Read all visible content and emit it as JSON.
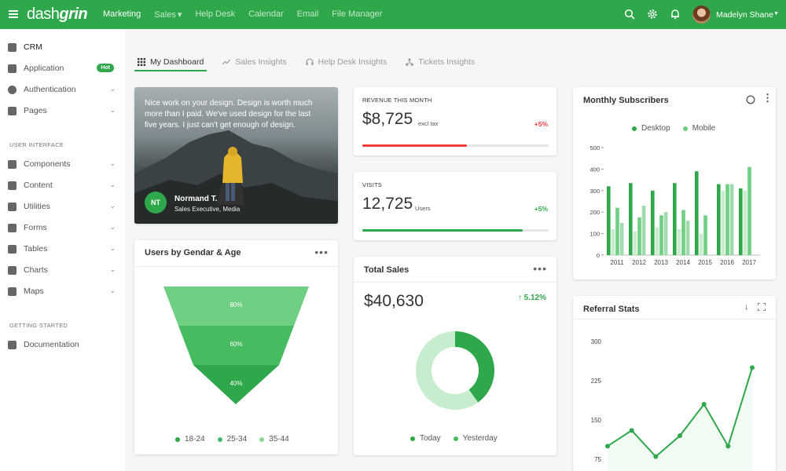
{
  "app": {
    "logo_main": "dash",
    "logo_accent": "grin"
  },
  "topnav": [
    "Marketing",
    "Sales",
    "Help Desk",
    "Calendar",
    "Email",
    "File Manager"
  ],
  "topnav_active": "Marketing",
  "user": {
    "name": "Madelyn Shane"
  },
  "sidebar": {
    "items": [
      {
        "label": "CRM",
        "icon": "crm-icon"
      },
      {
        "label": "Application",
        "icon": "application-icon",
        "badge": "Hot"
      },
      {
        "label": "Authentication",
        "icon": "authentication-icon"
      },
      {
        "label": "Pages",
        "icon": "pages-icon"
      }
    ],
    "section_ui": "USER INTERFACE",
    "ui_items": [
      {
        "label": "Components",
        "icon": "components-icon"
      },
      {
        "label": "Content",
        "icon": "content-icon"
      },
      {
        "label": "Utilities",
        "icon": "utilities-icon"
      },
      {
        "label": "Forms",
        "icon": "forms-icon"
      },
      {
        "label": "Tables",
        "icon": "tables-icon"
      },
      {
        "label": "Charts",
        "icon": "charts-icon"
      },
      {
        "label": "Maps",
        "icon": "maps-icon"
      }
    ],
    "section_start": "GETTING STARTED",
    "start_items": [
      {
        "label": "Documentation",
        "icon": "documentation-icon"
      }
    ]
  },
  "tabs": [
    {
      "label": "My Dashboard",
      "icon": "grid-icon"
    },
    {
      "label": "Sales Insights",
      "icon": "trend-icon"
    },
    {
      "label": "Help Desk Insights",
      "icon": "headphones-icon"
    },
    {
      "label": "Tickets Insights",
      "icon": "network-icon"
    }
  ],
  "testimonial": {
    "quote": "Nice work on your design. Design is worth much more than I paid. We've used design for the last five years. I just can't get enough of design.",
    "initials": "NT",
    "name": "Normand T.",
    "role": "Sales Executive, Media"
  },
  "revenue": {
    "label": "REVENUE THIS MONTH",
    "value": "$8,725",
    "unit": "excl tax",
    "change": "+5%",
    "progress": 0.56
  },
  "visits": {
    "label": "VISITS",
    "value": "12,725",
    "unit": "Users",
    "change": "+5%",
    "progress": 0.86
  },
  "total_sales": {
    "title": "Total Sales",
    "value": "$40,630",
    "change": "5.12%",
    "legend": [
      "Today",
      "Yesterday"
    ]
  },
  "funnel": {
    "title": "Users by Gendar & Age",
    "levels": [
      "80%",
      "60%",
      "40%"
    ],
    "legend": [
      "18-24",
      "25-34",
      "35-44"
    ]
  },
  "subscribers": {
    "title": "Monthly Subscribers",
    "legend": [
      "Desktop",
      "Mobile"
    ]
  },
  "referral": {
    "title": "Referral Stats"
  },
  "colors": {
    "primary": "#2ea84a",
    "light": "#86d595",
    "lighter": "#c7ecce",
    "danger": "#ee3e3e"
  },
  "chart_data": [
    {
      "type": "bar",
      "title": "Monthly Subscribers",
      "categories": [
        "2011",
        "2012",
        "2013",
        "2014",
        "2015",
        "2016",
        "2017"
      ],
      "ylim": [
        0,
        500
      ],
      "yticks": [
        "0",
        "100",
        "200",
        "300",
        "400",
        "500"
      ],
      "series": [
        {
          "name": "Desktop",
          "values": [
            320,
            335,
            300,
            335,
            390,
            330,
            310
          ]
        },
        {
          "name": "Mobile",
          "values": [
            120,
            110,
            130,
            120,
            100,
            300,
            300
          ]
        },
        {
          "name": "Desktop",
          "values": [
            220,
            175,
            185,
            210,
            185,
            330,
            410
          ]
        },
        {
          "name": "Mobile",
          "values": [
            150,
            230,
            200,
            160,
            0,
            330,
            0
          ]
        }
      ],
      "legend": "top"
    },
    {
      "type": "line",
      "title": "Referral Stats",
      "yticks": [
        "300",
        "225",
        "150",
        "75"
      ],
      "ylim": [
        75,
        300
      ],
      "values": [
        100,
        130,
        80,
        120,
        180,
        100,
        250
      ]
    },
    {
      "type": "pie",
      "title": "Total Sales",
      "slices": [
        {
          "name": "Today",
          "value": 40
        },
        {
          "name": "Yesterday",
          "value": 60
        }
      ]
    }
  ]
}
